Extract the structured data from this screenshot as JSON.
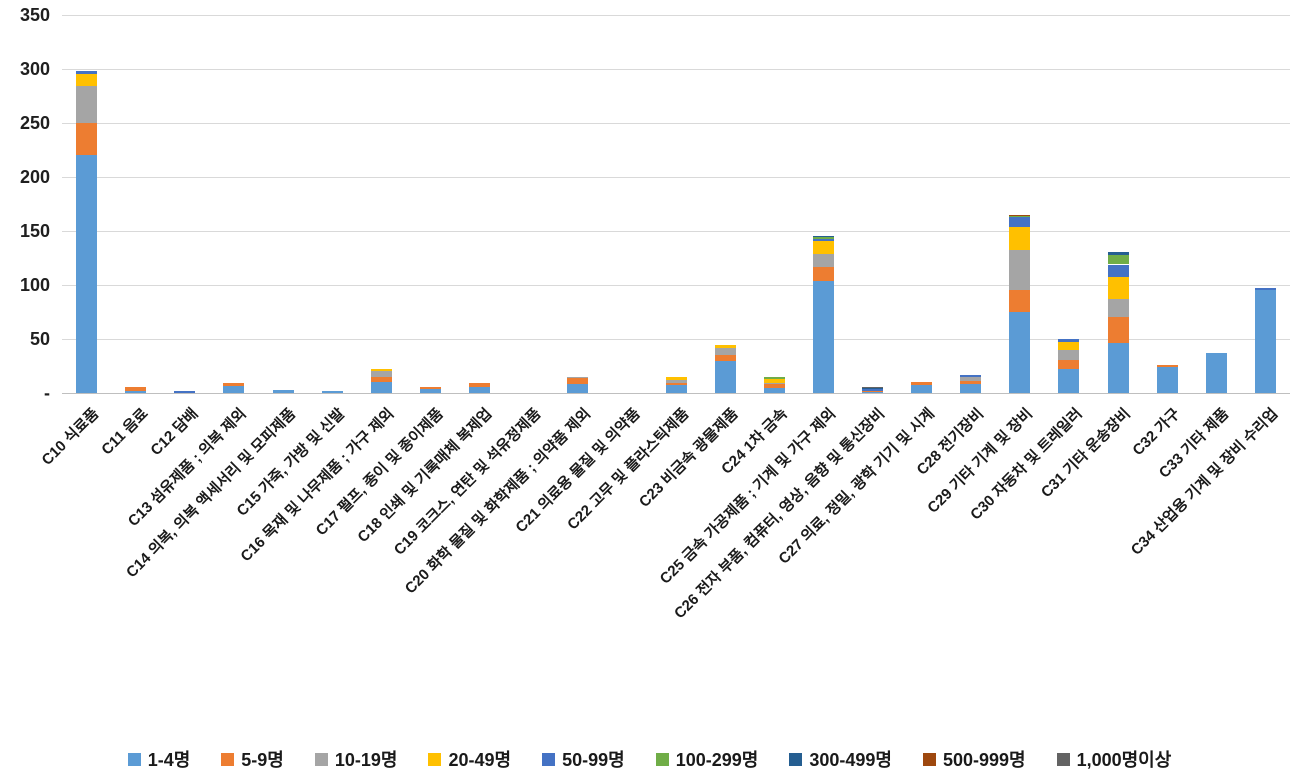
{
  "chart_data": {
    "type": "bar",
    "stacked": true,
    "title": "",
    "xlabel": "",
    "ylabel": "",
    "ylim": [
      0,
      350
    ],
    "ytick_interval": 50,
    "ytick_labels_top_to_bottom": [
      "350",
      "300",
      "250",
      "200",
      "150",
      "100",
      "50",
      "-"
    ],
    "grid": "horizontal",
    "legend_position": "bottom",
    "categories": [
      "C10 식료품",
      "C11 음료",
      "C12 담배",
      "C13 섬유제품 ; 의복 제외",
      "C14 의복, 의복 액세서리 및 모피제품",
      "C15 가죽, 가방 및 신발",
      "C16 목재 및 나무제품 ; 가구 제외",
      "C17 펄프, 종이 및 종이제품",
      "C18 인쇄 및 기록매체 복제업",
      "C19 코크스, 연탄 및 석유정제품",
      "C20 화학 물질 및 화학제품 ; 의약품 제외",
      "C21 의료용 물질 및 의약품",
      "C22 고무 및 플라스틱제품",
      "C23 비금속 광물제품",
      "C24 1차 금속",
      "C25 금속 가공제품 ; 기계 및 가구 제외",
      "C26 전자 부품, 컴퓨터, 영상, 음향 및 통신장비",
      "C27 의료, 정밀, 광학 기기 및 시계",
      "C28 전기장비",
      "C29 기타 기계 및 장비",
      "C30 자동차 및 트레일러",
      "C31 기타 운송장비",
      "C32 가구",
      "C33 기타 제품",
      "C34 산업용 기계 및 장비 수리업"
    ],
    "series": [
      {
        "name": "1-4명",
        "color": "#5B9BD5",
        "values": [
          220,
          2,
          0,
          6.5,
          2.5,
          1.5,
          10,
          4,
          6,
          0,
          8,
          0,
          7,
          30,
          5,
          104,
          1,
          7,
          8,
          75,
          22,
          46,
          24,
          37,
          95
        ]
      },
      {
        "name": "5-9명",
        "color": "#ED7D31",
        "values": [
          30,
          4,
          0,
          2.5,
          0,
          0,
          5,
          1.5,
          3,
          0,
          5.5,
          0,
          2.5,
          5,
          3,
          13,
          1,
          3,
          3,
          20,
          9,
          24,
          2,
          0,
          0
        ]
      },
      {
        "name": "10-19명",
        "color": "#A5A5A5",
        "values": [
          34,
          0,
          0,
          0,
          0,
          0,
          5,
          0,
          0,
          0,
          1.5,
          0,
          3,
          7,
          1,
          12,
          0,
          0,
          4,
          37,
          9,
          17,
          0,
          0,
          0
        ]
      },
      {
        "name": "20-49명",
        "color": "#FFC000",
        "values": [
          11,
          0,
          0,
          0,
          0,
          0,
          2,
          0,
          0,
          0,
          0,
          0,
          2,
          2,
          4,
          12,
          0,
          0,
          0,
          22,
          7,
          20,
          0,
          0,
          0
        ]
      },
      {
        "name": "50-99명",
        "color": "#4472C4",
        "values": [
          3,
          0,
          1.5,
          0,
          0,
          0,
          0,
          0,
          0,
          0,
          0,
          0,
          0,
          0,
          0,
          2,
          2,
          0,
          2,
          9,
          3,
          12,
          0,
          0,
          2
        ]
      },
      {
        "name": "100-299명",
        "color": "#70AD47",
        "values": [
          0,
          0,
          0,
          0,
          0,
          0,
          0,
          0,
          0,
          0,
          0,
          0,
          0,
          0,
          1.5,
          1,
          0,
          0,
          0,
          1,
          0,
          9,
          0,
          0,
          0
        ]
      },
      {
        "name": "300-499명",
        "color": "#255E91",
        "values": [
          0,
          0,
          0,
          0,
          0,
          0,
          0,
          0,
          0,
          0,
          0,
          0,
          0,
          0,
          0,
          1,
          1.5,
          0,
          0,
          0,
          0,
          3,
          0,
          0,
          0
        ]
      },
      {
        "name": "500-999명",
        "color": "#9E480E",
        "values": [
          0,
          0,
          0,
          0,
          0,
          0,
          0,
          0,
          0,
          0,
          0,
          0,
          0,
          0,
          0,
          0,
          0,
          0,
          0,
          1,
          0,
          0,
          0,
          0,
          0
        ]
      },
      {
        "name": "1,000명이상",
        "color": "#636363",
        "values": [
          0,
          0,
          0,
          0,
          0,
          0,
          0,
          0,
          0,
          0,
          0,
          0,
          0,
          0,
          0,
          0,
          0.5,
          0,
          0,
          0,
          0,
          0,
          0,
          0,
          0
        ]
      }
    ],
    "colors_meta": {
      "gridline": "#D9D9D9",
      "axis_line": "#BFBFBF",
      "text": "#1A1A1A"
    }
  }
}
